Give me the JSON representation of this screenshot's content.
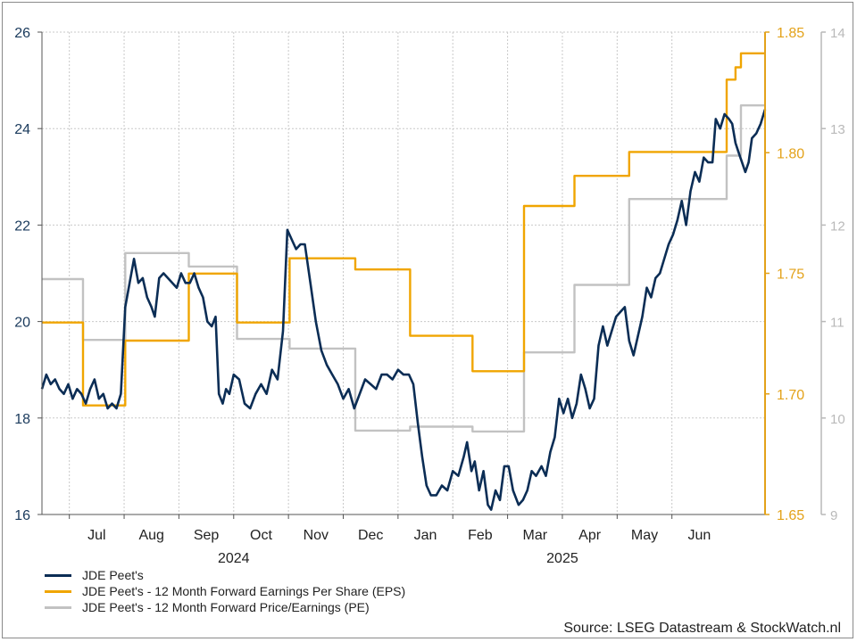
{
  "colors": {
    "price": "#0b2d55",
    "eps": "#f0a500",
    "pe": "#c2c2c2",
    "left_axis_text": "#1a3a5c",
    "right_eps_axis": "#e3a21a",
    "right_pe_axis": "#b9b9b9",
    "grid": "#c9c9c9"
  },
  "legend": {
    "items": [
      {
        "label": "JDE Peet's",
        "color": "#0b2d55"
      },
      {
        "label": "JDE Peet's - 12 Month Forward Earnings Per Share (EPS)",
        "color": "#f0a500"
      },
      {
        "label": "JDE Peet's - 12 Month Forward Price/Earnings (PE)",
        "color": "#c2c2c2"
      }
    ]
  },
  "source": "Source: LSEG Datastream & StockWatch.nl",
  "chart_data": {
    "type": "line",
    "x_unit": "months since 2024-06-01",
    "x_range": [
      0,
      12.7
    ],
    "month_ticks": [
      {
        "x": 1,
        "label": "Jul"
      },
      {
        "x": 2,
        "label": "Aug"
      },
      {
        "x": 3,
        "label": "Sep"
      },
      {
        "x": 4,
        "label": "Oct"
      },
      {
        "x": 5,
        "label": "Nov"
      },
      {
        "x": 6,
        "label": "Dec"
      },
      {
        "x": 7,
        "label": "Jan"
      },
      {
        "x": 8,
        "label": "Feb"
      },
      {
        "x": 9,
        "label": "Mar"
      },
      {
        "x": 10,
        "label": "Apr"
      },
      {
        "x": 11,
        "label": "May"
      },
      {
        "x": 12,
        "label": "Jun"
      }
    ],
    "year_labels": [
      {
        "x": 3.5,
        "label": "2024"
      },
      {
        "x": 9.5,
        "label": "2025"
      }
    ],
    "axes": {
      "left": {
        "min": 16,
        "max": 26,
        "ticks": [
          "16",
          "18",
          "20",
          "22",
          "24",
          "26"
        ]
      },
      "right_eps": {
        "min": 1.65,
        "max": 1.85,
        "ticks": [
          "1.65",
          "1.70",
          "1.75",
          "1.80",
          "1.85"
        ]
      },
      "right_pe": {
        "min": 9,
        "max": 14,
        "ticks": [
          "9",
          "10",
          "11",
          "12",
          "13",
          "14"
        ]
      }
    },
    "grid": true,
    "legend_position": "bottom-left",
    "series": [
      {
        "name": "JDE Peet's",
        "axis": "left",
        "points": [
          [
            0.0,
            18.6
          ],
          [
            0.08,
            18.9
          ],
          [
            0.16,
            18.7
          ],
          [
            0.24,
            18.8
          ],
          [
            0.32,
            18.6
          ],
          [
            0.4,
            18.5
          ],
          [
            0.48,
            18.7
          ],
          [
            0.56,
            18.4
          ],
          [
            0.64,
            18.6
          ],
          [
            0.72,
            18.5
          ],
          [
            0.8,
            18.3
          ],
          [
            0.88,
            18.6
          ],
          [
            0.96,
            18.8
          ],
          [
            1.04,
            18.4
          ],
          [
            1.12,
            18.5
          ],
          [
            1.2,
            18.2
          ],
          [
            1.28,
            18.3
          ],
          [
            1.36,
            18.2
          ],
          [
            1.44,
            18.5
          ],
          [
            1.52,
            20.3
          ],
          [
            1.6,
            20.8
          ],
          [
            1.68,
            21.3
          ],
          [
            1.76,
            20.8
          ],
          [
            1.84,
            20.9
          ],
          [
            1.92,
            20.5
          ],
          [
            2.0,
            20.3
          ],
          [
            2.06,
            20.1
          ],
          [
            2.14,
            20.9
          ],
          [
            2.22,
            21.0
          ],
          [
            2.3,
            20.9
          ],
          [
            2.38,
            20.8
          ],
          [
            2.46,
            20.7
          ],
          [
            2.54,
            21.0
          ],
          [
            2.62,
            20.8
          ],
          [
            2.7,
            20.8
          ],
          [
            2.78,
            21.0
          ],
          [
            2.86,
            20.7
          ],
          [
            2.94,
            20.5
          ],
          [
            3.02,
            20.0
          ],
          [
            3.1,
            19.9
          ],
          [
            3.17,
            20.1
          ],
          [
            3.23,
            18.5
          ],
          [
            3.3,
            18.3
          ],
          [
            3.36,
            18.6
          ],
          [
            3.42,
            18.5
          ],
          [
            3.5,
            18.9
          ],
          [
            3.6,
            18.8
          ],
          [
            3.7,
            18.3
          ],
          [
            3.8,
            18.2
          ],
          [
            3.9,
            18.5
          ],
          [
            4.0,
            18.7
          ],
          [
            4.1,
            18.5
          ],
          [
            4.2,
            19.0
          ],
          [
            4.3,
            18.8
          ],
          [
            4.4,
            19.8
          ],
          [
            4.48,
            21.9
          ],
          [
            4.56,
            21.7
          ],
          [
            4.64,
            21.5
          ],
          [
            4.72,
            21.6
          ],
          [
            4.8,
            21.6
          ],
          [
            4.9,
            20.8
          ],
          [
            5.0,
            20.0
          ],
          [
            5.1,
            19.4
          ],
          [
            5.2,
            19.1
          ],
          [
            5.3,
            18.9
          ],
          [
            5.4,
            18.7
          ],
          [
            5.5,
            18.4
          ],
          [
            5.6,
            18.6
          ],
          [
            5.7,
            18.2
          ],
          [
            5.8,
            18.5
          ],
          [
            5.9,
            18.8
          ],
          [
            6.0,
            18.7
          ],
          [
            6.1,
            18.6
          ],
          [
            6.2,
            18.9
          ],
          [
            6.3,
            18.9
          ],
          [
            6.4,
            18.8
          ],
          [
            6.5,
            19.0
          ],
          [
            6.6,
            18.9
          ],
          [
            6.7,
            18.9
          ],
          [
            6.78,
            18.7
          ],
          [
            6.86,
            17.9
          ],
          [
            6.94,
            17.2
          ],
          [
            7.02,
            16.6
          ],
          [
            7.1,
            16.4
          ],
          [
            7.2,
            16.4
          ],
          [
            7.3,
            16.6
          ],
          [
            7.4,
            16.5
          ],
          [
            7.5,
            16.9
          ],
          [
            7.6,
            16.8
          ],
          [
            7.7,
            17.2
          ],
          [
            7.76,
            17.5
          ],
          [
            7.84,
            16.9
          ],
          [
            7.9,
            17.1
          ],
          [
            7.98,
            16.5
          ],
          [
            8.06,
            16.9
          ],
          [
            8.14,
            16.2
          ],
          [
            8.2,
            16.1
          ],
          [
            8.28,
            16.5
          ],
          [
            8.36,
            16.3
          ],
          [
            8.44,
            17.0
          ],
          [
            8.52,
            17.0
          ],
          [
            8.6,
            16.5
          ],
          [
            8.7,
            16.2
          ],
          [
            8.78,
            16.3
          ],
          [
            8.86,
            16.5
          ],
          [
            8.94,
            16.9
          ],
          [
            9.02,
            16.8
          ],
          [
            9.12,
            17.0
          ],
          [
            9.2,
            16.8
          ],
          [
            9.28,
            17.3
          ],
          [
            9.36,
            17.6
          ],
          [
            9.44,
            18.4
          ],
          [
            9.52,
            18.1
          ],
          [
            9.6,
            18.4
          ],
          [
            9.68,
            18.0
          ],
          [
            9.76,
            18.3
          ],
          [
            9.84,
            18.9
          ],
          [
            9.92,
            18.6
          ],
          [
            10.0,
            18.2
          ],
          [
            10.08,
            18.4
          ],
          [
            10.16,
            19.5
          ],
          [
            10.24,
            19.9
          ],
          [
            10.32,
            19.5
          ],
          [
            10.4,
            19.8
          ],
          [
            10.48,
            20.1
          ],
          [
            10.56,
            20.2
          ],
          [
            10.64,
            20.3
          ],
          [
            10.72,
            19.6
          ],
          [
            10.8,
            19.3
          ],
          [
            10.88,
            19.7
          ],
          [
            10.96,
            20.1
          ],
          [
            11.04,
            20.7
          ],
          [
            11.12,
            20.5
          ],
          [
            11.2,
            20.9
          ],
          [
            11.28,
            21.0
          ],
          [
            11.36,
            21.3
          ],
          [
            11.44,
            21.6
          ],
          [
            11.52,
            21.8
          ],
          [
            11.6,
            22.1
          ],
          [
            11.68,
            22.5
          ],
          [
            11.76,
            22.0
          ],
          [
            11.84,
            22.7
          ],
          [
            11.92,
            23.1
          ],
          [
            12.0,
            22.9
          ],
          [
            12.08,
            23.4
          ],
          [
            12.16,
            23.3
          ],
          [
            12.24,
            23.3
          ],
          [
            12.3,
            24.2
          ],
          [
            12.38,
            24.0
          ],
          [
            12.46,
            24.3
          ],
          [
            12.54,
            24.2
          ],
          [
            12.6,
            24.1
          ],
          [
            12.66,
            23.7
          ],
          [
            12.72,
            23.5
          ],
          [
            12.78,
            23.3
          ],
          [
            12.84,
            23.1
          ],
          [
            12.9,
            23.3
          ],
          [
            12.96,
            23.8
          ],
          [
            13.04,
            23.9
          ],
          [
            13.12,
            24.1
          ],
          [
            13.2,
            24.4
          ]
        ]
      },
      {
        "name": "JDE Peet's - 12 Month Forward Earnings Per Share (EPS)",
        "axis": "right_eps",
        "points": [
          [
            0.0,
            1.7296
          ],
          [
            0.75,
            1.7296
          ],
          [
            0.75,
            1.6952
          ],
          [
            1.52,
            1.6952
          ],
          [
            1.52,
            1.7221
          ],
          [
            2.68,
            1.7221
          ],
          [
            2.68,
            1.7499
          ],
          [
            3.56,
            1.7499
          ],
          [
            3.56,
            1.7296
          ],
          [
            4.52,
            1.7296
          ],
          [
            4.52,
            1.7562
          ],
          [
            5.72,
            1.7562
          ],
          [
            5.72,
            1.7516
          ],
          [
            6.72,
            1.7516
          ],
          [
            6.72,
            1.7241
          ],
          [
            7.86,
            1.7241
          ],
          [
            7.86,
            1.7094
          ],
          [
            8.8,
            1.7094
          ],
          [
            8.8,
            1.7779
          ],
          [
            9.72,
            1.7779
          ],
          [
            9.72,
            1.7904
          ],
          [
            10.72,
            1.7904
          ],
          [
            10.72,
            1.8003
          ],
          [
            11.76,
            1.8003
          ],
          [
            11.76,
            1.8003
          ],
          [
            12.5,
            1.8003
          ],
          [
            12.5,
            1.8303
          ],
          [
            12.66,
            1.8303
          ],
          [
            12.66,
            1.8354
          ],
          [
            12.76,
            1.8354
          ],
          [
            12.76,
            1.8412
          ],
          [
            13.2,
            1.8412
          ]
        ]
      },
      {
        "name": "JDE Peet's - 12 Month Forward Price/Earnings (PE)",
        "axis": "right_pe",
        "points": [
          [
            0.0,
            11.44
          ],
          [
            0.75,
            11.44
          ],
          [
            0.75,
            10.81
          ],
          [
            1.52,
            10.81
          ],
          [
            1.52,
            11.71
          ],
          [
            2.68,
            11.71
          ],
          [
            2.68,
            11.57
          ],
          [
            3.56,
            11.57
          ],
          [
            3.56,
            10.82
          ],
          [
            4.52,
            10.82
          ],
          [
            4.52,
            10.72
          ],
          [
            5.72,
            10.72
          ],
          [
            5.72,
            9.87
          ],
          [
            6.72,
            9.87
          ],
          [
            6.72,
            9.91
          ],
          [
            7.86,
            9.91
          ],
          [
            7.86,
            9.86
          ],
          [
            8.8,
            9.86
          ],
          [
            8.8,
            10.68
          ],
          [
            9.72,
            10.68
          ],
          [
            9.72,
            11.38
          ],
          [
            10.72,
            11.38
          ],
          [
            10.72,
            12.27
          ],
          [
            11.76,
            12.27
          ],
          [
            11.76,
            12.27
          ],
          [
            12.5,
            12.27
          ],
          [
            12.5,
            12.72
          ],
          [
            12.76,
            12.72
          ],
          [
            12.76,
            13.24
          ],
          [
            13.2,
            13.24
          ]
        ]
      }
    ]
  }
}
